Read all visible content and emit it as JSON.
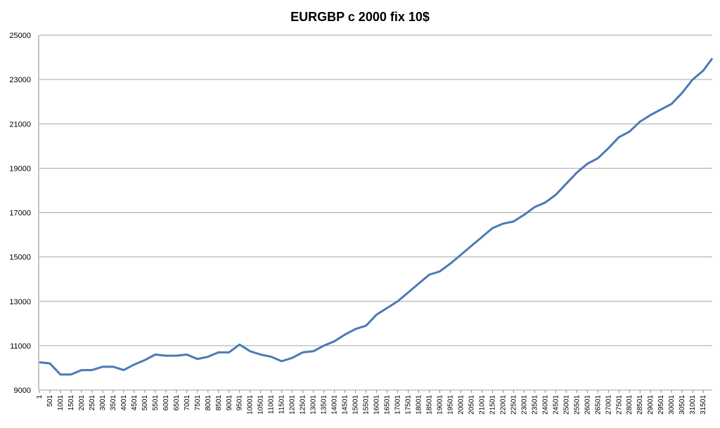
{
  "chart_data": {
    "type": "line",
    "title": "EURGBP c 2000 fix 10$",
    "x": [
      1,
      501,
      1001,
      1501,
      2001,
      2501,
      3001,
      3501,
      4001,
      4501,
      5001,
      5501,
      6001,
      6501,
      7001,
      7501,
      8001,
      8501,
      9001,
      9501,
      10001,
      10501,
      11001,
      11501,
      12001,
      12501,
      13001,
      13501,
      14001,
      14501,
      15001,
      15501,
      16001,
      16501,
      17001,
      17501,
      18001,
      18501,
      19001,
      19501,
      20001,
      20501,
      21001,
      21501,
      22001,
      22501,
      23001,
      23501,
      24001,
      24501,
      25001,
      25501,
      26001,
      26501,
      27001,
      27501,
      28001,
      28501,
      29001,
      29501,
      30001,
      30501,
      31001,
      31501,
      31930
    ],
    "series": [
      {
        "name": "EURGBP",
        "color": "#4a7ab5",
        "values": [
          10250,
          10200,
          9700,
          9700,
          9900,
          9900,
          10050,
          10050,
          9900,
          10150,
          10350,
          10600,
          10550,
          10550,
          10600,
          10400,
          10500,
          10700,
          10700,
          11050,
          10750,
          10600,
          10500,
          10300,
          10450,
          10700,
          10750,
          11000,
          11200,
          11500,
          11750,
          11900,
          12400,
          12700,
          13000,
          13400,
          13800,
          14200,
          14350,
          14700,
          15100,
          15500,
          15900,
          16300,
          16500,
          16600,
          16900,
          17250,
          17450,
          17800,
          18300,
          18800,
          19200,
          19450,
          19900,
          20400,
          20650,
          21100,
          21400,
          21650,
          21900,
          22400,
          23000,
          23400,
          23950
        ]
      }
    ],
    "xlim": [
      1,
      31930
    ],
    "xticks": [
      1,
      501,
      1001,
      1501,
      2001,
      2501,
      3001,
      3501,
      4001,
      4501,
      5001,
      5501,
      6001,
      6501,
      7001,
      7501,
      8001,
      8501,
      9001,
      9501,
      10001,
      10501,
      11001,
      11501,
      12001,
      12501,
      13001,
      13501,
      14001,
      14501,
      15001,
      15501,
      16001,
      16501,
      17001,
      17501,
      18001,
      18501,
      19001,
      19501,
      20001,
      20501,
      21001,
      21501,
      22001,
      22501,
      23001,
      23501,
      24001,
      24501,
      25001,
      25501,
      26001,
      26501,
      27001,
      27501,
      28001,
      28501,
      29001,
      29501,
      30001,
      30501,
      31001,
      31501
    ],
    "ylim": [
      9000,
      25000
    ],
    "yticks": [
      9000,
      11000,
      13000,
      15000,
      17000,
      19000,
      21000,
      23000,
      25000
    ],
    "grid": true
  }
}
